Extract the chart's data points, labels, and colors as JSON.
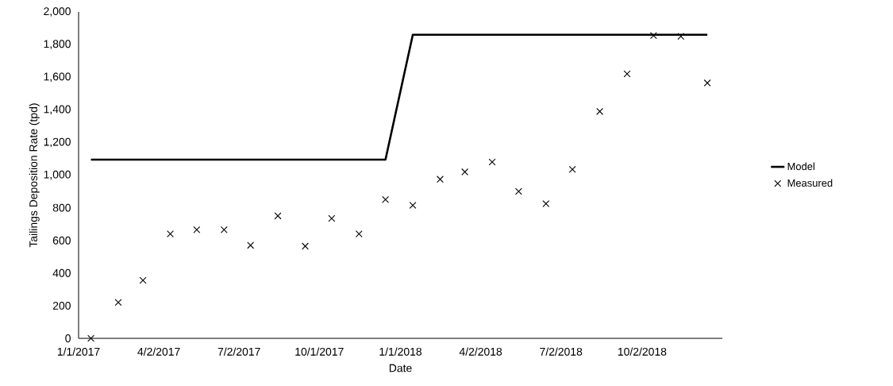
{
  "chart_data": {
    "type": "line",
    "xlabel": "Date",
    "ylabel": "Tailings Deposition Rate (tpd)",
    "xlim": [
      "2017-01-01",
      "2019-01-01"
    ],
    "xticks": [
      {
        "value": "2017-01-01",
        "label": "1/1/2017"
      },
      {
        "value": "2017-04-02",
        "label": "4/2/2017"
      },
      {
        "value": "2017-07-02",
        "label": "7/2/2017"
      },
      {
        "value": "2017-10-01",
        "label": "10/1/2017"
      },
      {
        "value": "2018-01-01",
        "label": "1/1/2018"
      },
      {
        "value": "2018-04-02",
        "label": "4/2/2018"
      },
      {
        "value": "2018-07-02",
        "label": "7/2/2018"
      },
      {
        "value": "2018-10-02",
        "label": "10/2/2018"
      }
    ],
    "ylim": [
      0,
      2000
    ],
    "yticks": [
      0,
      200,
      400,
      600,
      800,
      {
        "value": 1000,
        "label": "1,000"
      },
      {
        "value": 1200,
        "label": "1,200"
      },
      {
        "value": 1400,
        "label": "1,400"
      },
      {
        "value": 1600,
        "label": "1,600"
      },
      {
        "value": 1800,
        "label": "1,800"
      },
      {
        "value": 2000,
        "label": "2,000"
      }
    ],
    "grid": false,
    "legend": "right",
    "series": [
      {
        "name": "Model",
        "color": "#000000",
        "marker": "none",
        "x": [
          "2017-01-15",
          "2017-12-15",
          "2018-01-15",
          "2018-12-15"
        ],
        "values": [
          1095,
          1095,
          1860,
          1860
        ]
      },
      {
        "name": "Measured",
        "type": "scatter",
        "color": "#000000",
        "marker": "cross",
        "x": [
          "2017-01-15",
          "2017-02-15",
          "2017-03-15",
          "2017-04-15",
          "2017-05-15",
          "2017-06-15",
          "2017-07-15",
          "2017-08-15",
          "2017-09-15",
          "2017-10-15",
          "2017-11-15",
          "2017-12-15",
          "2018-01-15",
          "2018-02-15",
          "2018-03-15",
          "2018-04-15",
          "2018-05-15",
          "2018-06-15",
          "2018-07-15",
          "2018-08-15",
          "2018-09-15",
          "2018-10-15",
          "2018-11-15",
          "2018-12-15"
        ],
        "values": [
          0,
          220,
          355,
          640,
          665,
          665,
          570,
          750,
          565,
          735,
          640,
          850,
          815,
          975,
          1020,
          1080,
          900,
          825,
          1035,
          1390,
          1620,
          1855,
          1850,
          1565
        ]
      }
    ]
  }
}
